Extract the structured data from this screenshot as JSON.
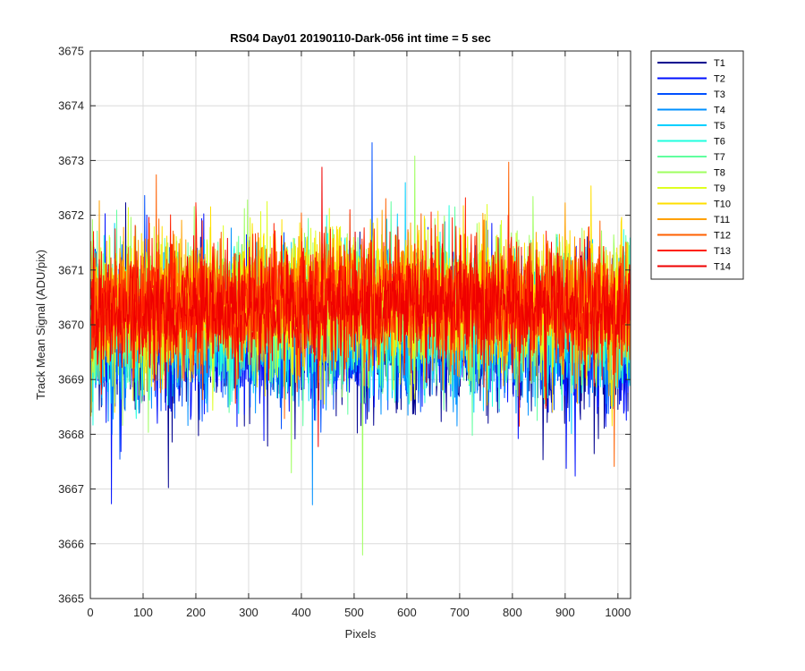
{
  "chart_data": {
    "type": "line",
    "title": "RS04 Day01 20190110-Dark-056 int time = 5 sec",
    "xlabel": "Pixels",
    "ylabel": "Track Mean Signal (ADU/pix)",
    "xlim": [
      0,
      1024
    ],
    "ylim": [
      3665,
      3675
    ],
    "xticks": [
      0,
      100,
      200,
      300,
      400,
      500,
      600,
      700,
      800,
      900,
      1000
    ],
    "yticks": [
      3665,
      3666,
      3667,
      3668,
      3669,
      3670,
      3671,
      3672,
      3673,
      3674,
      3675
    ],
    "grid": true,
    "legend_position": "outside-top-right",
    "noise_note": "each series is a noisy trace over pixels 1-1024 around its mean",
    "series": [
      {
        "name": "T1",
        "color": "#00008f",
        "mean": 3669.6,
        "spread": 1.1
      },
      {
        "name": "T2",
        "color": "#0010ff",
        "mean": 3669.7,
        "spread": 1.1
      },
      {
        "name": "T3",
        "color": "#0050ff",
        "mean": 3669.8,
        "spread": 1.0
      },
      {
        "name": "T4",
        "color": "#0090ff",
        "mean": 3669.8,
        "spread": 1.0
      },
      {
        "name": "T5",
        "color": "#00d0ff",
        "mean": 3669.9,
        "spread": 1.0
      },
      {
        "name": "T6",
        "color": "#20ffdf",
        "mean": 3670.0,
        "spread": 1.0
      },
      {
        "name": "T7",
        "color": "#60ff9f",
        "mean": 3670.1,
        "spread": 1.0
      },
      {
        "name": "T8",
        "color": "#9fff60",
        "mean": 3670.2,
        "spread": 1.0
      },
      {
        "name": "T9",
        "color": "#dfff20",
        "mean": 3670.3,
        "spread": 1.0
      },
      {
        "name": "T10",
        "color": "#ffdf00",
        "mean": 3670.3,
        "spread": 1.0
      },
      {
        "name": "T11",
        "color": "#ffa000",
        "mean": 3670.3,
        "spread": 0.9
      },
      {
        "name": "T12",
        "color": "#ff6000",
        "mean": 3670.3,
        "spread": 0.9
      },
      {
        "name": "T13",
        "color": "#ff2000",
        "mean": 3670.3,
        "spread": 0.9
      },
      {
        "name": "T14",
        "color": "#ef0000",
        "mean": 3670.2,
        "spread": 0.8
      }
    ]
  }
}
